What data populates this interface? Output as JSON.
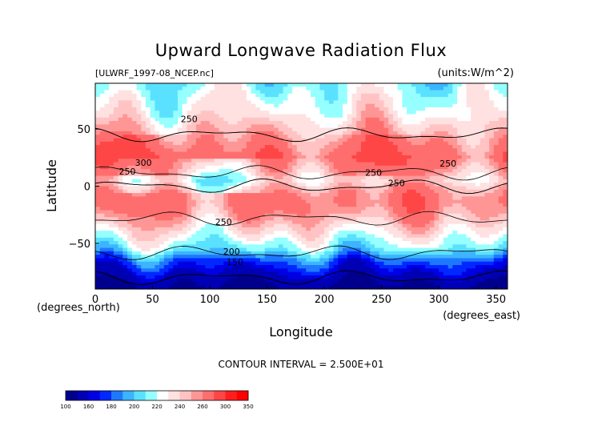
{
  "chart_data": {
    "type": "heatmap",
    "title": "Upward Longwave Radiation Flux",
    "source_label": "[ULWRF_1997-08_NCEP.nc]",
    "units_label": "(units:W/m^2)",
    "xlabel": "Longitude",
    "ylabel": "Latitude",
    "x_unit_label": "(degrees_east)",
    "y_unit_label": "(degrees_north)",
    "xlim": [
      0,
      360
    ],
    "ylim": [
      -90,
      90
    ],
    "x_ticks": [
      "0",
      "50",
      "100",
      "150",
      "200",
      "250",
      "300",
      "350"
    ],
    "y_ticks": [
      "50",
      "0",
      "−50"
    ],
    "contour_interval_label": "CONTOUR INTERVAL = 2.500E+01",
    "contour_labels": [
      "250",
      "250",
      "250",
      "250",
      "250",
      "300",
      "250",
      "200",
      "150"
    ],
    "colorbar": {
      "ticks": [
        "100",
        "160",
        "180",
        "200",
        "220",
        "240",
        "260",
        "300",
        "350"
      ],
      "bounds": [
        100,
        140,
        160,
        170,
        180,
        190,
        200,
        210,
        220,
        230,
        240,
        250,
        260,
        280,
        300,
        325,
        350
      ],
      "colors": [
        "#00008c",
        "#0000b4",
        "#0000e6",
        "#0028ff",
        "#1e78ff",
        "#3cb4ff",
        "#5ae1ff",
        "#96ffff",
        "#ffffff",
        "#ffe1e1",
        "#ffc3c3",
        "#ff9696",
        "#ff6e6e",
        "#ff4646",
        "#ff1e1e",
        "#ff0000"
      ]
    },
    "latitude_profile_W_m2": {
      "lat": [
        -90,
        -75,
        -65,
        -55,
        -45,
        -35,
        -25,
        -15,
        -5,
        5,
        15,
        25,
        35,
        45,
        55,
        65,
        75,
        90
      ],
      "value": [
        130,
        160,
        180,
        210,
        225,
        240,
        255,
        265,
        260,
        240,
        255,
        270,
        260,
        250,
        240,
        230,
        225,
        215
      ]
    }
  }
}
